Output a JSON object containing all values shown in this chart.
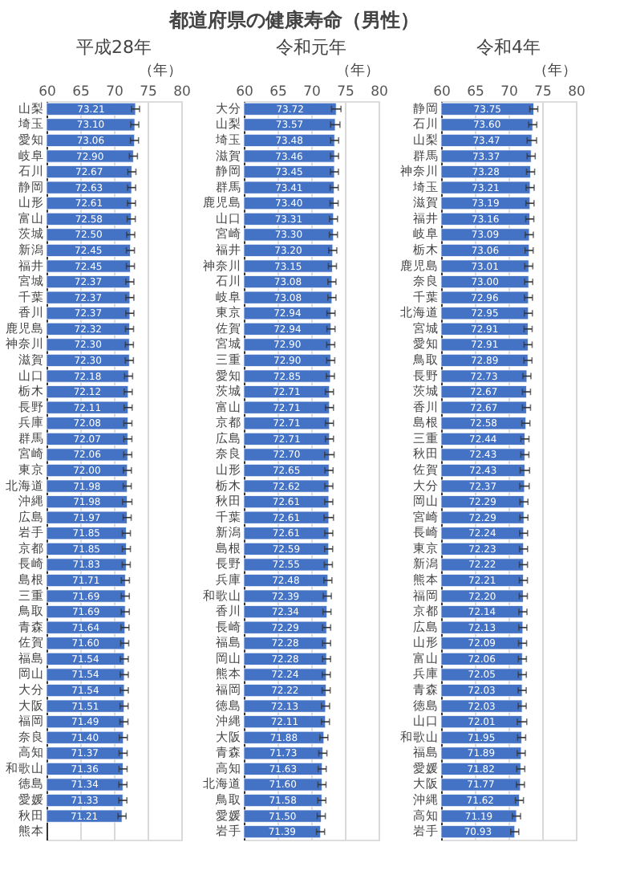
{
  "chart_data": [
    {
      "type": "bar",
      "orientation": "horizontal",
      "title": "平成28年",
      "xlabel": "（年）",
      "annotations": [
        "都道府県の健康寿命（男性）"
      ],
      "xlim": [
        60,
        80
      ],
      "xticks": [
        60,
        65,
        70,
        75,
        80
      ],
      "grid": "x",
      "categories": [
        "山梨",
        "埼玉",
        "愛知",
        "岐阜",
        "石川",
        "静岡",
        "山形",
        "富山",
        "茨城",
        "新潟",
        "福井",
        "宮城",
        "千葉",
        "香川",
        "鹿児島",
        "神奈川",
        "滋賀",
        "山口",
        "栃木",
        "長野",
        "兵庫",
        "群馬",
        "宮崎",
        "東京",
        "北海道",
        "沖縄",
        "広島",
        "岩手",
        "京都",
        "長崎",
        "島根",
        "三重",
        "鳥取",
        "青森",
        "佐賀",
        "福島",
        "岡山",
        "大分",
        "大阪",
        "福岡",
        "奈良",
        "高知",
        "和歌山",
        "徳島",
        "愛媛",
        "秋田",
        "熊本"
      ],
      "series": [
        {
          "color": "#4472c4",
          "values": [
            73.21,
            73.1,
            73.06,
            72.9,
            72.67,
            72.63,
            72.61,
            72.58,
            72.5,
            72.45,
            72.45,
            72.37,
            72.37,
            72.37,
            72.32,
            72.3,
            72.3,
            72.18,
            72.12,
            72.11,
            72.08,
            72.07,
            72.06,
            72.0,
            71.98,
            71.98,
            71.97,
            71.85,
            71.85,
            71.83,
            71.71,
            71.69,
            71.69,
            71.64,
            71.6,
            71.54,
            71.54,
            71.54,
            71.51,
            71.49,
            71.4,
            71.37,
            71.36,
            71.34,
            71.33,
            71.21,
            null
          ],
          "value_labels": [
            "73.21",
            "73.10",
            "73.06",
            "72.90",
            "72.67",
            "72.63",
            "72.61",
            "72.58",
            "72.50",
            "72.45",
            "72.45",
            "72.37",
            "72.37",
            "72.37",
            "72.32",
            "72.30",
            "72.30",
            "72.18",
            "72.12",
            "72.11",
            "72.08",
            "72.07",
            "72.06",
            "72.00",
            "71.98",
            "71.98",
            "71.97",
            "71.85",
            "71.85",
            "71.83",
            "71.71",
            "71.69",
            "71.69",
            "71.64",
            "71.60",
            "71.54",
            "71.54",
            "71.54",
            "71.51",
            "71.49",
            "71.40",
            "71.37",
            "71.36",
            "71.34",
            "71.33",
            "71.21",
            null
          ],
          "errors": [
            0.6,
            0.6,
            0.6,
            0.6,
            0.6,
            0.6,
            0.6,
            0.6,
            0.6,
            0.6,
            0.6,
            0.6,
            0.6,
            0.6,
            0.6,
            0.6,
            0.6,
            0.6,
            0.6,
            0.6,
            0.6,
            0.6,
            0.6,
            0.6,
            0.6,
            0.7,
            0.6,
            0.6,
            0.6,
            0.6,
            0.6,
            0.6,
            0.6,
            0.6,
            0.6,
            0.6,
            0.6,
            0.6,
            0.6,
            0.6,
            0.6,
            0.6,
            0.6,
            0.6,
            0.6,
            0.6,
            null
          ]
        }
      ]
    },
    {
      "type": "bar",
      "orientation": "horizontal",
      "title": "令和元年",
      "xlabel": "（年）",
      "xlim": [
        60,
        80
      ],
      "xticks": [
        60,
        65,
        70,
        75,
        80
      ],
      "grid": "x",
      "categories": [
        "大分",
        "山梨",
        "埼玉",
        "滋賀",
        "静岡",
        "群馬",
        "鹿児島",
        "山口",
        "宮崎",
        "福井",
        "神奈川",
        "石川",
        "岐阜",
        "東京",
        "佐賀",
        "宮城",
        "三重",
        "愛知",
        "茨城",
        "富山",
        "京都",
        "広島",
        "奈良",
        "山形",
        "栃木",
        "秋田",
        "千葉",
        "新潟",
        "島根",
        "長野",
        "兵庫",
        "和歌山",
        "香川",
        "長崎",
        "福島",
        "岡山",
        "熊本",
        "福岡",
        "徳島",
        "沖縄",
        "大阪",
        "青森",
        "高知",
        "北海道",
        "鳥取",
        "愛媛",
        "岩手"
      ],
      "series": [
        {
          "color": "#4472c4",
          "values": [
            73.72,
            73.57,
            73.48,
            73.46,
            73.45,
            73.41,
            73.4,
            73.31,
            73.3,
            73.2,
            73.15,
            73.08,
            73.08,
            72.94,
            72.94,
            72.9,
            72.9,
            72.85,
            72.71,
            72.71,
            72.71,
            72.71,
            72.7,
            72.65,
            72.62,
            72.61,
            72.61,
            72.61,
            72.59,
            72.55,
            72.48,
            72.39,
            72.34,
            72.29,
            72.28,
            72.28,
            72.24,
            72.22,
            72.13,
            72.11,
            71.88,
            71.73,
            71.63,
            71.6,
            71.58,
            71.5,
            71.39
          ],
          "value_labels": [
            "73.72",
            "73.57",
            "73.48",
            "73.46",
            "73.45",
            "73.41",
            "73.40",
            "73.31",
            "73.30",
            "73.20",
            "73.15",
            "73.08",
            "73.08",
            "72.94",
            "72.94",
            "72.90",
            "72.90",
            "72.85",
            "72.71",
            "72.71",
            "72.71",
            "72.71",
            "72.70",
            "72.65",
            "72.62",
            "72.61",
            "72.61",
            "72.61",
            "72.59",
            "72.55",
            "72.48",
            "72.39",
            "72.34",
            "72.29",
            "72.28",
            "72.28",
            "72.24",
            "72.22",
            "72.13",
            "72.11",
            "71.88",
            "71.73",
            "71.63",
            "71.60",
            "71.58",
            "71.50",
            "71.39"
          ],
          "errors": [
            0.7,
            0.7,
            0.6,
            0.6,
            0.6,
            0.6,
            0.6,
            0.6,
            0.6,
            0.6,
            0.6,
            0.6,
            0.6,
            0.6,
            0.6,
            0.6,
            0.6,
            0.6,
            0.6,
            0.6,
            0.6,
            0.6,
            0.7,
            0.6,
            0.6,
            0.6,
            0.7,
            0.6,
            0.6,
            0.6,
            0.6,
            0.6,
            0.6,
            0.6,
            0.6,
            0.6,
            0.6,
            0.6,
            0.6,
            0.6,
            0.6,
            0.6,
            0.6,
            0.6,
            0.6,
            0.6,
            0.6
          ]
        }
      ]
    },
    {
      "type": "bar",
      "orientation": "horizontal",
      "title": "令和4年",
      "xlabel": "（年）",
      "xlim": [
        60,
        80
      ],
      "xticks": [
        60,
        65,
        70,
        75,
        80
      ],
      "grid": "x",
      "categories": [
        "静岡",
        "石川",
        "山梨",
        "群馬",
        "神奈川",
        "埼玉",
        "滋賀",
        "福井",
        "岐阜",
        "栃木",
        "鹿児島",
        "奈良",
        "千葉",
        "北海道",
        "宮城",
        "愛知",
        "鳥取",
        "長野",
        "茨城",
        "香川",
        "島根",
        "三重",
        "秋田",
        "佐賀",
        "大分",
        "岡山",
        "宮崎",
        "長崎",
        "東京",
        "新潟",
        "熊本",
        "福岡",
        "京都",
        "広島",
        "山形",
        "富山",
        "兵庫",
        "青森",
        "徳島",
        "山口",
        "和歌山",
        "福島",
        "愛媛",
        "大阪",
        "沖縄",
        "高知",
        "岩手"
      ],
      "series": [
        {
          "color": "#4472c4",
          "values": [
            73.75,
            73.6,
            73.47,
            73.37,
            73.28,
            73.21,
            73.19,
            73.16,
            73.09,
            73.06,
            73.01,
            73.0,
            72.96,
            72.95,
            72.91,
            72.91,
            72.89,
            72.73,
            72.67,
            72.67,
            72.58,
            72.44,
            72.43,
            72.43,
            72.37,
            72.29,
            72.29,
            72.24,
            72.23,
            72.22,
            72.21,
            72.2,
            72.14,
            72.13,
            72.09,
            72.06,
            72.05,
            72.03,
            72.03,
            72.01,
            71.95,
            71.89,
            71.82,
            71.77,
            71.62,
            71.19,
            70.93
          ],
          "value_labels": [
            "73.75",
            "73.60",
            "73.47",
            "73.37",
            "73.28",
            "73.21",
            "73.19",
            "73.16",
            "73.09",
            "73.06",
            "73.01",
            "73.00",
            "72.96",
            "72.95",
            "72.91",
            "72.91",
            "72.89",
            "72.73",
            "72.67",
            "72.67",
            "72.58",
            "72.44",
            "72.43",
            "72.43",
            "72.37",
            "72.29",
            "72.29",
            "72.24",
            "72.23",
            "72.22",
            "72.21",
            "72.20",
            "72.14",
            "72.13",
            "72.09",
            "72.06",
            "72.05",
            "72.03",
            "72.03",
            "72.01",
            "71.95",
            "71.89",
            "71.82",
            "71.77",
            "71.62",
            "71.19",
            "70.93"
          ],
          "errors": [
            0.6,
            0.6,
            0.7,
            0.6,
            0.6,
            0.6,
            0.6,
            0.6,
            0.6,
            0.6,
            0.6,
            0.6,
            0.6,
            0.6,
            0.6,
            0.6,
            0.6,
            0.6,
            0.6,
            0.6,
            0.6,
            0.6,
            0.6,
            0.7,
            0.7,
            0.6,
            0.6,
            0.6,
            0.6,
            0.6,
            0.6,
            0.6,
            0.6,
            0.6,
            0.6,
            0.6,
            0.6,
            0.6,
            0.6,
            0.7,
            0.6,
            0.6,
            0.6,
            0.6,
            0.6,
            0.6,
            0.6
          ]
        }
      ]
    }
  ]
}
